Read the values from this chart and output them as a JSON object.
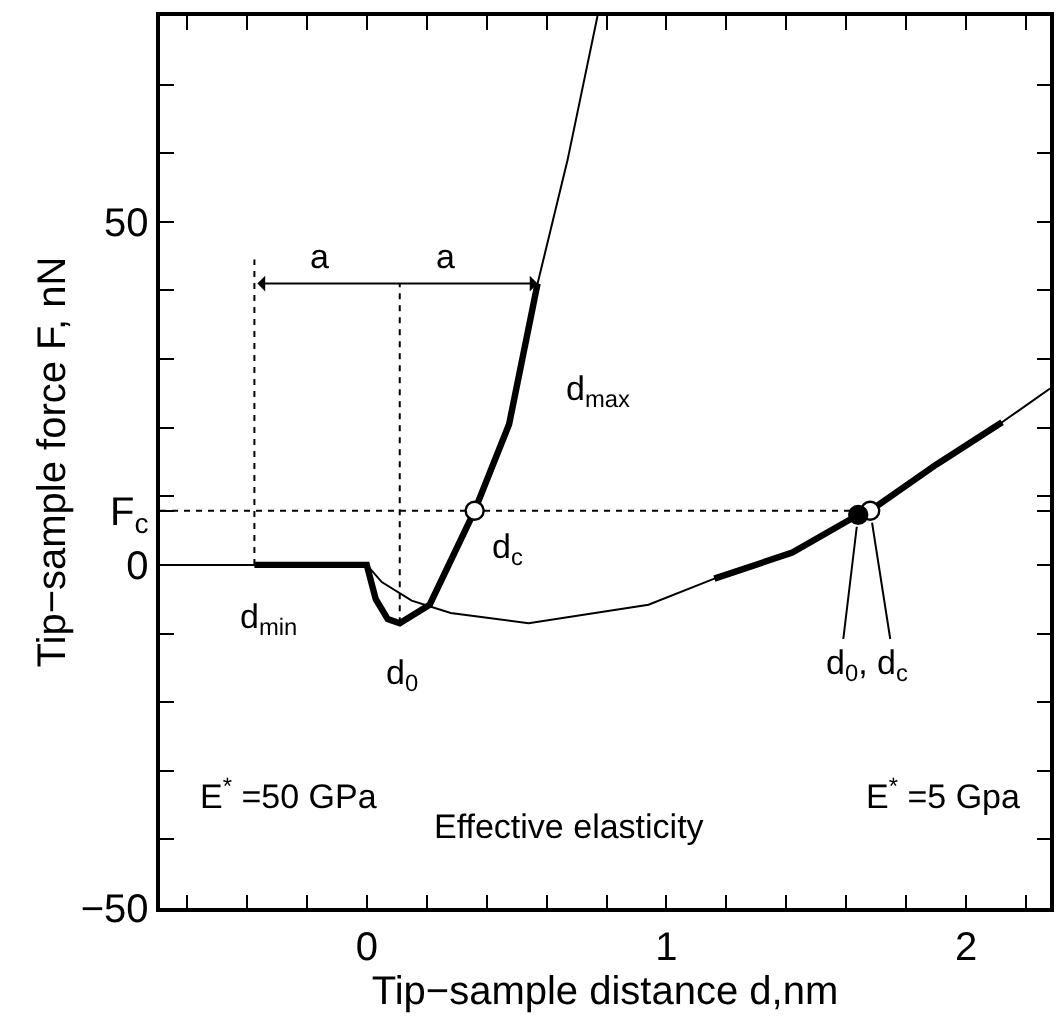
{
  "chart_data": {
    "type": "line",
    "xlabel": "Tip−sample distance d,nm",
    "ylabel": "Tip−sample force F, nN",
    "xlim": [
      -0.69,
      2.28
    ],
    "ylim": [
      -50,
      80
    ],
    "xticks": [
      {
        "value": -0.6,
        "label": null
      },
      {
        "value": -0.4,
        "label": null
      },
      {
        "value": -0.2,
        "label": null
      },
      0,
      {
        "value": 0.2,
        "label": null
      },
      {
        "value": 0.4,
        "label": null
      },
      {
        "value": 0.6,
        "label": null
      },
      {
        "value": 0.8,
        "label": null
      },
      1,
      {
        "value": 1.2,
        "label": null
      },
      {
        "value": 1.4,
        "label": null
      },
      {
        "value": 1.6,
        "label": null
      },
      {
        "value": 1.8,
        "label": null
      },
      2,
      {
        "value": 2.2,
        "label": null
      }
    ],
    "yticks": [
      -50,
      {
        "value": -40,
        "label": null
      },
      {
        "value": -30,
        "label": null
      },
      {
        "value": -20,
        "label": null
      },
      {
        "value": -10,
        "label": null
      },
      0,
      {
        "value": 7.9,
        "label": "F$_{c}$"
      },
      {
        "value": 10,
        "label": null
      },
      {
        "value": 20,
        "label": null
      },
      {
        "value": 30,
        "label": null
      },
      {
        "value": 40,
        "label": null
      },
      50,
      {
        "value": 60,
        "label": null
      },
      {
        "value": 70,
        "label": null
      },
      {
        "value": 80,
        "label": null
      }
    ],
    "series": [
      {
        "color": "#000000",
        "x": [
          -0.69,
          0,
          0.03,
          0.07,
          0.11,
          0.21,
          0.36,
          0.475,
          0.57,
          0.67,
          0.77
        ],
        "values": [
          0,
          0,
          -5,
          -7.9,
          -8.5,
          -5.8,
          7.9,
          20.5,
          41,
          59,
          80
        ]
      },
      {
        "color": "#000000",
        "x": [
          0,
          0.05,
          0.15,
          0.28,
          0.54,
          0.94,
          1.16,
          1.42,
          1.64,
          1.68,
          1.9,
          2.12,
          2.28
        ],
        "values": [
          0,
          -2.5,
          -5.2,
          -7,
          -8.5,
          -5.8,
          -2,
          1.8,
          7.3,
          7.9,
          14.6,
          20.8,
          25.7
        ]
      },
      {
        "color": "#000000",
        "x": [
          -0.375,
          0,
          0.03,
          0.07,
          0.11,
          0.21,
          0.36,
          0.475,
          0.57
        ],
        "values": [
          0,
          0,
          -5,
          -7.9,
          -8.5,
          -5.8,
          7.9,
          20.5,
          41
        ]
      },
      {
        "color": "#000000",
        "x": [
          1.16,
          1.42,
          1.64,
          1.68,
          1.9,
          2.12
        ],
        "values": [
          -2,
          1.8,
          7.3,
          7.9,
          14.6,
          20.8
        ]
      },
      {
        "color": "#000000",
        "line_style": "dotted",
        "x": [
          -0.69,
          1.68
        ],
        "values": [
          7.9,
          7.9
        ]
      },
      {
        "color": "#000000",
        "line_style": "dotted",
        "x": [
          -0.375,
          -0.375
        ],
        "values": [
          0,
          44.5
        ]
      },
      {
        "color": "#000000",
        "line_style": "dotted",
        "x": [
          0.11,
          0.11
        ],
        "values": [
          -8.5,
          41
        ]
      },
      {
        "type": "scatter",
        "marker": "circle",
        "color": "#ffffff",
        "x": [
          0.36,
          1.68
        ],
        "values": [
          7.9,
          7.9
        ]
      },
      {
        "type": "scatter",
        "marker": "circle",
        "color": "#000000",
        "x": [
          1.64
        ],
        "values": [
          7.3
        ]
      }
    ],
    "annotations": [
      "a",
      "a",
      "d$_{max}$",
      "d$_{c}$",
      "d$_{min}$",
      "d$_{0}$",
      {
        "text": "d$_{0}$, d$_{c}$",
        "x": 1.64,
        "y": 7.3
      },
      "E$^{*}$ =50 GPa",
      "E$^{*}$ =5 Gpa",
      "Effective elasticity"
    ]
  }
}
